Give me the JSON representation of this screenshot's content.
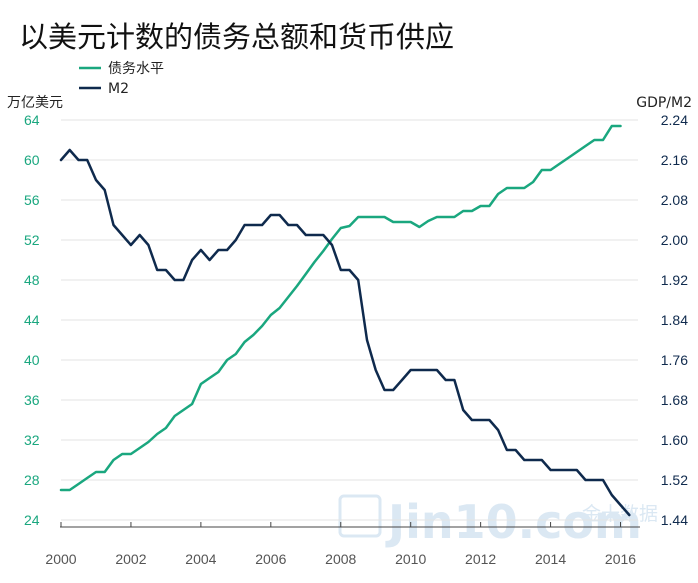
{
  "colors": {
    "debt": "#1aa77f",
    "m2": "#0f2a4d",
    "grid": "#e3e3e3",
    "watermark": "#dbe8f3"
  },
  "watermark": {
    "main": "Jin10.com",
    "sub": "金十数据"
  },
  "chart_data": {
    "type": "line",
    "title": "以美元计数的债务总额和货币供应",
    "left_axis": {
      "label": "万亿美元",
      "ticks": [
        24,
        28,
        32,
        36,
        40,
        44,
        48,
        52,
        56,
        60,
        64
      ],
      "range": [
        24,
        64
      ]
    },
    "right_axis": {
      "label": "GDP/M2",
      "ticks": [
        "1.44",
        "1.52",
        "1.60",
        "1.68",
        "1.76",
        "1.84",
        "1.92",
        "2.00",
        "2.08",
        "2.16",
        "2.24"
      ],
      "range": [
        1.44,
        2.24
      ]
    },
    "x_axis": {
      "ticks": [
        "2000",
        "2002",
        "2004",
        "2006",
        "2008",
        "2010",
        "2012",
        "2014",
        "2016"
      ],
      "range": [
        2000,
        2016.5
      ]
    },
    "legend": [
      {
        "name": "债务水平",
        "series": "debt"
      },
      {
        "name": "M2",
        "series": "m2"
      }
    ],
    "series": [
      {
        "name": "债务水平",
        "axis": "left",
        "x": [
          2000,
          2000.25,
          2000.5,
          2000.75,
          2001,
          2001.25,
          2001.5,
          2001.75,
          2002,
          2002.25,
          2002.5,
          2002.75,
          2003,
          2003.25,
          2003.5,
          2003.75,
          2004,
          2004.25,
          2004.5,
          2004.75,
          2005,
          2005.25,
          2005.5,
          2005.75,
          2006,
          2006.25,
          2006.5,
          2006.75,
          2007,
          2007.25,
          2007.5,
          2007.75,
          2008,
          2008.25,
          2008.5,
          2008.75,
          2009,
          2009.25,
          2009.5,
          2009.75,
          2010,
          2010.25,
          2010.5,
          2010.75,
          2011,
          2011.25,
          2011.5,
          2011.75,
          2012,
          2012.25,
          2012.5,
          2012.75,
          2013,
          2013.25,
          2013.5,
          2013.75,
          2014,
          2014.25,
          2014.5,
          2014.75,
          2015,
          2015.25,
          2015.5,
          2015.75,
          2016
        ],
        "values": [
          27,
          27,
          27.6,
          28.2,
          28.8,
          28.8,
          30,
          30.6,
          30.6,
          31.2,
          31.8,
          32.6,
          33.2,
          34.4,
          35,
          35.6,
          37.6,
          38.2,
          38.8,
          40,
          40.6,
          41.8,
          42.5,
          43.4,
          44.5,
          45.2,
          46.3,
          47.4,
          48.6,
          49.8,
          50.9,
          52.1,
          53.2,
          53.4,
          54.3,
          54.3,
          54.3,
          54.3,
          53.8,
          53.8,
          53.8,
          53.3,
          53.9,
          54.3,
          54.3,
          54.3,
          54.9,
          54.9,
          55.4,
          55.4,
          56.6,
          57.2,
          57.2,
          57.2,
          57.8,
          59,
          59,
          59.6,
          60.2,
          60.8,
          61.4,
          62,
          62,
          63.4,
          63.4
        ]
      },
      {
        "name": "M2",
        "axis": "right",
        "x": [
          2000,
          2000.25,
          2000.5,
          2000.75,
          2001,
          2001.25,
          2001.5,
          2001.75,
          2002,
          2002.25,
          2002.5,
          2002.75,
          2003,
          2003.25,
          2003.5,
          2003.75,
          2004,
          2004.25,
          2004.5,
          2004.75,
          2005,
          2005.25,
          2005.5,
          2005.75,
          2006,
          2006.25,
          2006.5,
          2006.75,
          2007,
          2007.25,
          2007.5,
          2007.75,
          2008,
          2008.25,
          2008.5,
          2008.75,
          2009,
          2009.25,
          2009.5,
          2009.75,
          2010,
          2010.25,
          2010.5,
          2010.75,
          2011,
          2011.25,
          2011.5,
          2011.75,
          2012,
          2012.25,
          2012.5,
          2012.75,
          2013,
          2013.25,
          2013.5,
          2013.75,
          2014,
          2014.25,
          2014.5,
          2014.75,
          2015,
          2015.25,
          2015.5,
          2015.75,
          2016,
          2016.25
        ],
        "values": [
          2.16,
          2.18,
          2.16,
          2.16,
          2.12,
          2.1,
          2.03,
          2.01,
          1.99,
          2.01,
          1.99,
          1.94,
          1.94,
          1.92,
          1.92,
          1.96,
          1.98,
          1.96,
          1.98,
          1.98,
          2.0,
          2.03,
          2.03,
          2.03,
          2.05,
          2.05,
          2.03,
          2.03,
          2.01,
          2.01,
          2.01,
          1.99,
          1.94,
          1.94,
          1.92,
          1.8,
          1.74,
          1.7,
          1.7,
          1.72,
          1.74,
          1.74,
          1.74,
          1.74,
          1.72,
          1.72,
          1.66,
          1.64,
          1.64,
          1.64,
          1.62,
          1.58,
          1.58,
          1.56,
          1.56,
          1.56,
          1.54,
          1.54,
          1.54,
          1.54,
          1.52,
          1.52,
          1.52,
          1.49,
          1.47,
          1.45
        ]
      }
    ]
  }
}
